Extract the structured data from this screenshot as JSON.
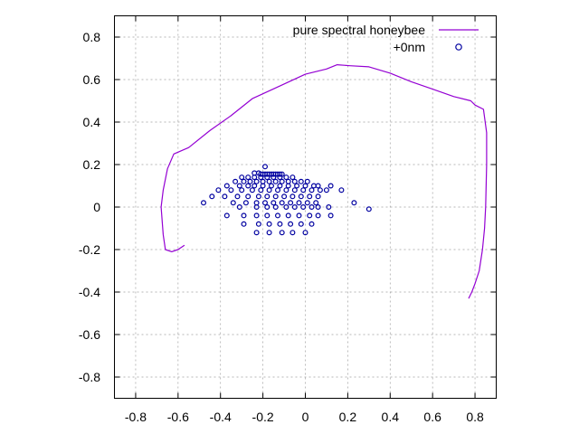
{
  "chart_data": {
    "type": "scatter",
    "title": "",
    "xlabel": "",
    "ylabel": "",
    "xlim": [
      -0.9,
      0.9
    ],
    "ylim": [
      -0.9,
      0.9
    ],
    "xticks": [
      -0.8,
      -0.6,
      -0.4,
      -0.2,
      0,
      0.2,
      0.4,
      0.6,
      0.8
    ],
    "yticks": [
      -0.8,
      -0.6,
      -0.4,
      -0.2,
      0,
      0.2,
      0.4,
      0.6,
      0.8
    ],
    "grid": true,
    "legend_position": "top-right",
    "series": [
      {
        "name": "pure spectral honeybee",
        "type": "line",
        "color": "#9400d3",
        "x": [
          -0.57,
          -0.6,
          -0.63,
          -0.66,
          -0.67,
          -0.68,
          -0.67,
          -0.65,
          -0.62,
          -0.55,
          -0.45,
          -0.35,
          -0.25,
          -0.12,
          0.0,
          0.1,
          0.15,
          0.21,
          0.3,
          0.4,
          0.5,
          0.6,
          0.7,
          0.78,
          0.8,
          0.84,
          0.855,
          0.855,
          0.85,
          0.845,
          0.835,
          0.82,
          0.8,
          0.785,
          0.77
        ],
        "y": [
          -0.18,
          -0.2,
          -0.21,
          -0.2,
          -0.13,
          0.0,
          0.08,
          0.18,
          0.25,
          0.28,
          0.36,
          0.43,
          0.51,
          0.57,
          0.625,
          0.65,
          0.67,
          0.665,
          0.66,
          0.63,
          0.59,
          0.555,
          0.52,
          0.5,
          0.48,
          0.46,
          0.35,
          0.2,
          0.0,
          -0.1,
          -0.2,
          -0.3,
          -0.36,
          -0.4,
          -0.43
        ]
      },
      {
        "name": "+0nm",
        "type": "scatter",
        "color": "#0000a0",
        "x": [
          -0.19,
          -0.24,
          -0.22,
          -0.21,
          -0.2,
          -0.19,
          -0.18,
          -0.17,
          -0.16,
          -0.15,
          -0.14,
          -0.13,
          -0.12,
          -0.11,
          -0.3,
          -0.27,
          -0.24,
          -0.21,
          -0.18,
          -0.15,
          -0.12,
          -0.09,
          -0.06,
          -0.33,
          -0.29,
          -0.26,
          -0.23,
          -0.2,
          -0.17,
          -0.14,
          -0.11,
          -0.08,
          -0.05,
          -0.02,
          0.01,
          -0.37,
          -0.31,
          -0.27,
          -0.24,
          -0.2,
          -0.16,
          -0.12,
          -0.08,
          -0.04,
          0.0,
          0.04,
          0.06,
          0.12,
          -0.41,
          -0.35,
          -0.3,
          -0.25,
          -0.21,
          -0.17,
          -0.13,
          -0.09,
          -0.05,
          -0.01,
          0.03,
          0.07,
          0.1,
          0.17,
          -0.44,
          -0.38,
          -0.32,
          -0.27,
          -0.22,
          -0.18,
          -0.14,
          -0.1,
          -0.06,
          -0.02,
          0.02,
          0.06,
          0.23,
          -0.48,
          -0.34,
          -0.28,
          -0.23,
          -0.19,
          -0.15,
          -0.11,
          -0.07,
          -0.03,
          0.01,
          0.05,
          0.3,
          -0.31,
          -0.23,
          -0.18,
          -0.14,
          -0.09,
          -0.05,
          -0.01,
          0.03,
          0.06,
          0.11,
          -0.37,
          -0.29,
          -0.23,
          -0.18,
          -0.13,
          -0.08,
          -0.03,
          0.02,
          0.06,
          0.12,
          -0.29,
          -0.22,
          -0.17,
          -0.12,
          -0.07,
          -0.02,
          0.03,
          -0.23,
          -0.17,
          -0.11,
          -0.06,
          0.0
        ],
        "y": [
          0.19,
          0.16,
          0.16,
          0.155,
          0.155,
          0.155,
          0.155,
          0.155,
          0.155,
          0.155,
          0.155,
          0.155,
          0.155,
          0.155,
          0.14,
          0.14,
          0.14,
          0.14,
          0.14,
          0.14,
          0.14,
          0.14,
          0.14,
          0.12,
          0.12,
          0.12,
          0.12,
          0.12,
          0.12,
          0.12,
          0.12,
          0.12,
          0.12,
          0.12,
          0.12,
          0.1,
          0.1,
          0.1,
          0.1,
          0.1,
          0.1,
          0.1,
          0.1,
          0.1,
          0.1,
          0.1,
          0.1,
          0.1,
          0.08,
          0.08,
          0.08,
          0.08,
          0.08,
          0.08,
          0.08,
          0.08,
          0.08,
          0.08,
          0.08,
          0.08,
          0.08,
          0.08,
          0.05,
          0.05,
          0.05,
          0.05,
          0.05,
          0.05,
          0.05,
          0.05,
          0.05,
          0.05,
          0.05,
          0.05,
          0.02,
          0.02,
          0.02,
          0.02,
          0.02,
          0.02,
          0.02,
          0.02,
          0.02,
          0.02,
          0.02,
          0.02,
          -0.01,
          0.0,
          0.0,
          0.0,
          0.0,
          0.0,
          0.0,
          0.0,
          0.0,
          0.0,
          0.0,
          -0.04,
          -0.04,
          -0.04,
          -0.04,
          -0.04,
          -0.04,
          -0.04,
          -0.04,
          -0.04,
          -0.04,
          -0.08,
          -0.08,
          -0.08,
          -0.08,
          -0.08,
          -0.08,
          -0.08,
          -0.12,
          -0.12,
          -0.12,
          -0.12,
          -0.12
        ]
      }
    ]
  }
}
